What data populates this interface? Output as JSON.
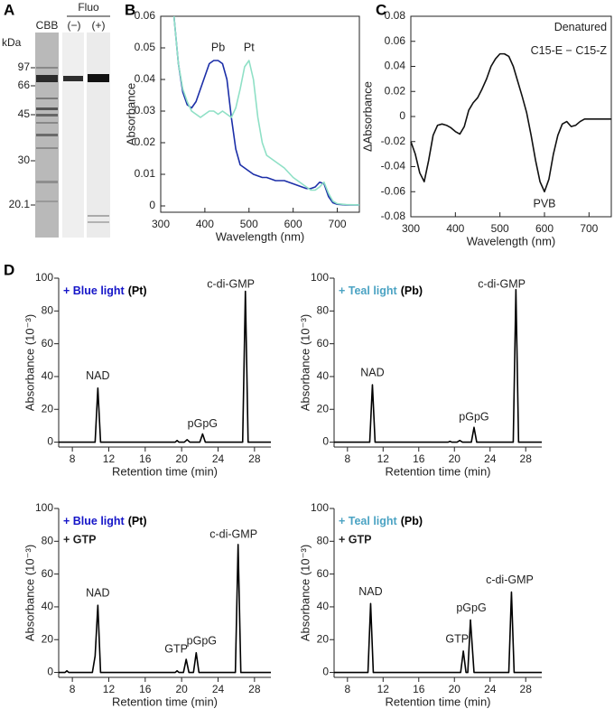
{
  "panel_labels": [
    "A",
    "B",
    "C",
    "D"
  ],
  "gel": {
    "unit": "kDa",
    "lanes": [
      "CBB",
      "(−)",
      "(+)"
    ],
    "group": "Fluo",
    "markers": [
      "97",
      "66",
      "45",
      "30",
      "20.1"
    ]
  },
  "chart_data": [
    {
      "type": "line",
      "xlabel": "Wavelength (nm)",
      "ylabel": "Absorbance",
      "xlim": [
        300,
        750
      ],
      "ylim": [
        -0.002,
        0.06
      ],
      "xticks": [
        300,
        400,
        500,
        600,
        700
      ],
      "yticks": [
        0,
        0.01,
        0.02,
        0.03,
        0.04,
        0.05,
        0.06
      ],
      "annotations": [
        "Pb",
        "Pt"
      ],
      "x": [
        330,
        340,
        350,
        360,
        370,
        380,
        390,
        400,
        410,
        420,
        430,
        440,
        450,
        460,
        470,
        480,
        490,
        500,
        510,
        520,
        530,
        540,
        550,
        560,
        570,
        580,
        590,
        600,
        610,
        620,
        630,
        640,
        650,
        660,
        670,
        680,
        690,
        700,
        720,
        750
      ],
      "series": [
        {
          "color": "#1c2fa8",
          "values": [
            0.06,
            0.045,
            0.036,
            0.032,
            0.031,
            0.033,
            0.037,
            0.041,
            0.045,
            0.046,
            0.046,
            0.045,
            0.04,
            0.028,
            0.018,
            0.013,
            0.012,
            0.011,
            0.01,
            0.0095,
            0.009,
            0.009,
            0.0085,
            0.008,
            0.008,
            0.008,
            0.0075,
            0.007,
            0.0065,
            0.006,
            0.0055,
            0.0055,
            0.006,
            0.0075,
            0.007,
            0.003,
            0.001,
            0.0005,
            0.0003,
            0.0003
          ]
        },
        {
          "color": "#8fe0c6",
          "values": [
            0.06,
            0.045,
            0.037,
            0.033,
            0.03,
            0.029,
            0.028,
            0.029,
            0.03,
            0.03,
            0.029,
            0.03,
            0.029,
            0.028,
            0.031,
            0.037,
            0.044,
            0.046,
            0.04,
            0.028,
            0.02,
            0.016,
            0.015,
            0.014,
            0.013,
            0.012,
            0.0105,
            0.009,
            0.008,
            0.007,
            0.006,
            0.005,
            0.005,
            0.006,
            0.0075,
            0.004,
            0.0015,
            0.0007,
            0.0004,
            0.0003
          ]
        }
      ]
    },
    {
      "type": "line",
      "xlabel": "Wavelength (nm)",
      "ylabel": "ΔAbsorbance",
      "xlim": [
        300,
        750
      ],
      "ylim": [
        -0.08,
        0.08
      ],
      "xticks": [
        300,
        400,
        500,
        600,
        700
      ],
      "yticks": [
        -0.08,
        -0.06,
        -0.04,
        -0.02,
        0,
        0.02,
        0.04,
        0.06,
        0.08
      ],
      "annotations": [
        "Denatured",
        "C15-E − C15-Z",
        "PVB"
      ],
      "x": [
        300,
        310,
        320,
        330,
        340,
        350,
        360,
        370,
        380,
        390,
        400,
        410,
        420,
        430,
        440,
        450,
        460,
        470,
        480,
        490,
        500,
        510,
        520,
        530,
        540,
        550,
        560,
        570,
        580,
        590,
        600,
        610,
        620,
        630,
        640,
        650,
        660,
        670,
        680,
        690,
        700,
        750
      ],
      "series": [
        {
          "color": "#111111",
          "values": [
            -0.02,
            -0.03,
            -0.045,
            -0.052,
            -0.035,
            -0.015,
            -0.007,
            -0.006,
            -0.007,
            -0.009,
            -0.012,
            -0.014,
            -0.008,
            0.005,
            0.011,
            0.015,
            0.022,
            0.03,
            0.04,
            0.046,
            0.05,
            0.05,
            0.048,
            0.04,
            0.028,
            0.016,
            0.003,
            -0.015,
            -0.035,
            -0.052,
            -0.06,
            -0.05,
            -0.03,
            -0.015,
            -0.006,
            -0.004,
            -0.008,
            -0.007,
            -0.004,
            -0.002,
            -0.002,
            -0.002
          ]
        }
      ]
    },
    {
      "type": "line",
      "xlabel": "Retention time (min)",
      "ylabel": "Absorbance (10⁻³)",
      "xlim": [
        6.5,
        29.8
      ],
      "ylim": [
        -3,
        100
      ],
      "xticks": [
        8,
        12,
        16,
        20,
        24,
        28
      ],
      "yticks": [
        0,
        20,
        40,
        60,
        80,
        100
      ],
      "condition_light": "+ Blue light",
      "condition_state": "(Pt)",
      "condition_color": "#1515c8",
      "annotations": [
        "NAD",
        "pGpG",
        "c-di-GMP"
      ],
      "x": [
        6.5,
        10.5,
        10.8,
        11.1,
        19.3,
        19.5,
        19.7,
        20.3,
        20.6,
        20.9,
        22.0,
        22.3,
        22.6,
        26.7,
        27.0,
        27.3,
        29.8
      ],
      "series": [
        {
          "color": "#000000",
          "values": [
            0,
            0,
            33,
            0,
            0,
            1,
            0,
            0,
            1.5,
            0,
            0,
            5,
            0,
            0,
            92,
            0,
            0
          ]
        }
      ]
    },
    {
      "type": "line",
      "xlabel": "Retention time (min)",
      "ylabel": "Absorbance (10⁻³)",
      "xlim": [
        6.5,
        29.8
      ],
      "ylim": [
        -3,
        100
      ],
      "xticks": [
        8,
        12,
        16,
        20,
        24,
        28
      ],
      "yticks": [
        0,
        20,
        40,
        60,
        80,
        100
      ],
      "condition_light": "+ Teal light",
      "condition_state": "(Pb)",
      "condition_color": "#4ba3c3",
      "annotations": [
        "NAD",
        "pGpG",
        "c-di-GMP"
      ],
      "x": [
        6.5,
        10.5,
        10.8,
        11.1,
        19.3,
        19.5,
        19.7,
        20.3,
        20.6,
        20.9,
        21.9,
        22.2,
        22.5,
        26.6,
        26.9,
        27.2,
        29.8
      ],
      "series": [
        {
          "color": "#000000",
          "values": [
            0,
            0,
            35,
            0,
            0,
            0.5,
            0,
            0,
            1,
            0,
            0,
            9,
            0,
            0,
            93,
            0,
            0
          ]
        }
      ]
    },
    {
      "type": "line",
      "xlabel": "Retention time (min)",
      "ylabel": "Absorbance (10⁻³)",
      "xlim": [
        6.5,
        29.8
      ],
      "ylim": [
        -3,
        100
      ],
      "xticks": [
        8,
        12,
        16,
        20,
        24,
        28
      ],
      "yticks": [
        0,
        20,
        40,
        60,
        80,
        100
      ],
      "condition_light": "+ Blue light",
      "condition_state": "(Pt)",
      "condition_color": "#1515c8",
      "extra": "+ GTP",
      "annotations": [
        "NAD",
        "GTP",
        "pGpG",
        "c-di-GMP"
      ],
      "x": [
        6.5,
        7.2,
        7.4,
        7.6,
        10.2,
        10.5,
        10.8,
        11.1,
        19.3,
        19.5,
        19.7,
        20.2,
        20.5,
        20.8,
        21.3,
        21.6,
        21.9,
        25.9,
        26.2,
        26.5,
        29.8
      ],
      "series": [
        {
          "color": "#000000",
          "values": [
            0,
            0,
            1,
            0,
            0,
            10,
            41,
            0,
            0,
            1,
            0,
            0,
            8,
            0,
            0,
            12,
            0,
            0,
            78,
            0,
            0
          ]
        }
      ]
    },
    {
      "type": "line",
      "xlabel": "Retention time (min)",
      "ylabel": "Absorbance (10⁻³)",
      "xlim": [
        6.5,
        29.8
      ],
      "ylim": [
        -3,
        100
      ],
      "xticks": [
        8,
        12,
        16,
        20,
        24,
        28
      ],
      "yticks": [
        0,
        20,
        40,
        60,
        80,
        100
      ],
      "condition_light": "+ Teal light",
      "condition_state": "(Pb)",
      "condition_color": "#4ba3c3",
      "extra": "+ GTP",
      "annotations": [
        "NAD",
        "GTP",
        "pGpG",
        "c-di-GMP"
      ],
      "x": [
        6.5,
        10.3,
        10.6,
        10.9,
        20.7,
        21.0,
        21.3,
        21.5,
        21.8,
        22.2,
        26.1,
        26.4,
        26.7,
        29.8
      ],
      "series": [
        {
          "color": "#000000",
          "values": [
            0,
            0,
            42,
            0,
            0,
            13,
            0,
            0,
            32,
            0,
            0,
            49,
            0,
            0
          ]
        }
      ]
    }
  ]
}
